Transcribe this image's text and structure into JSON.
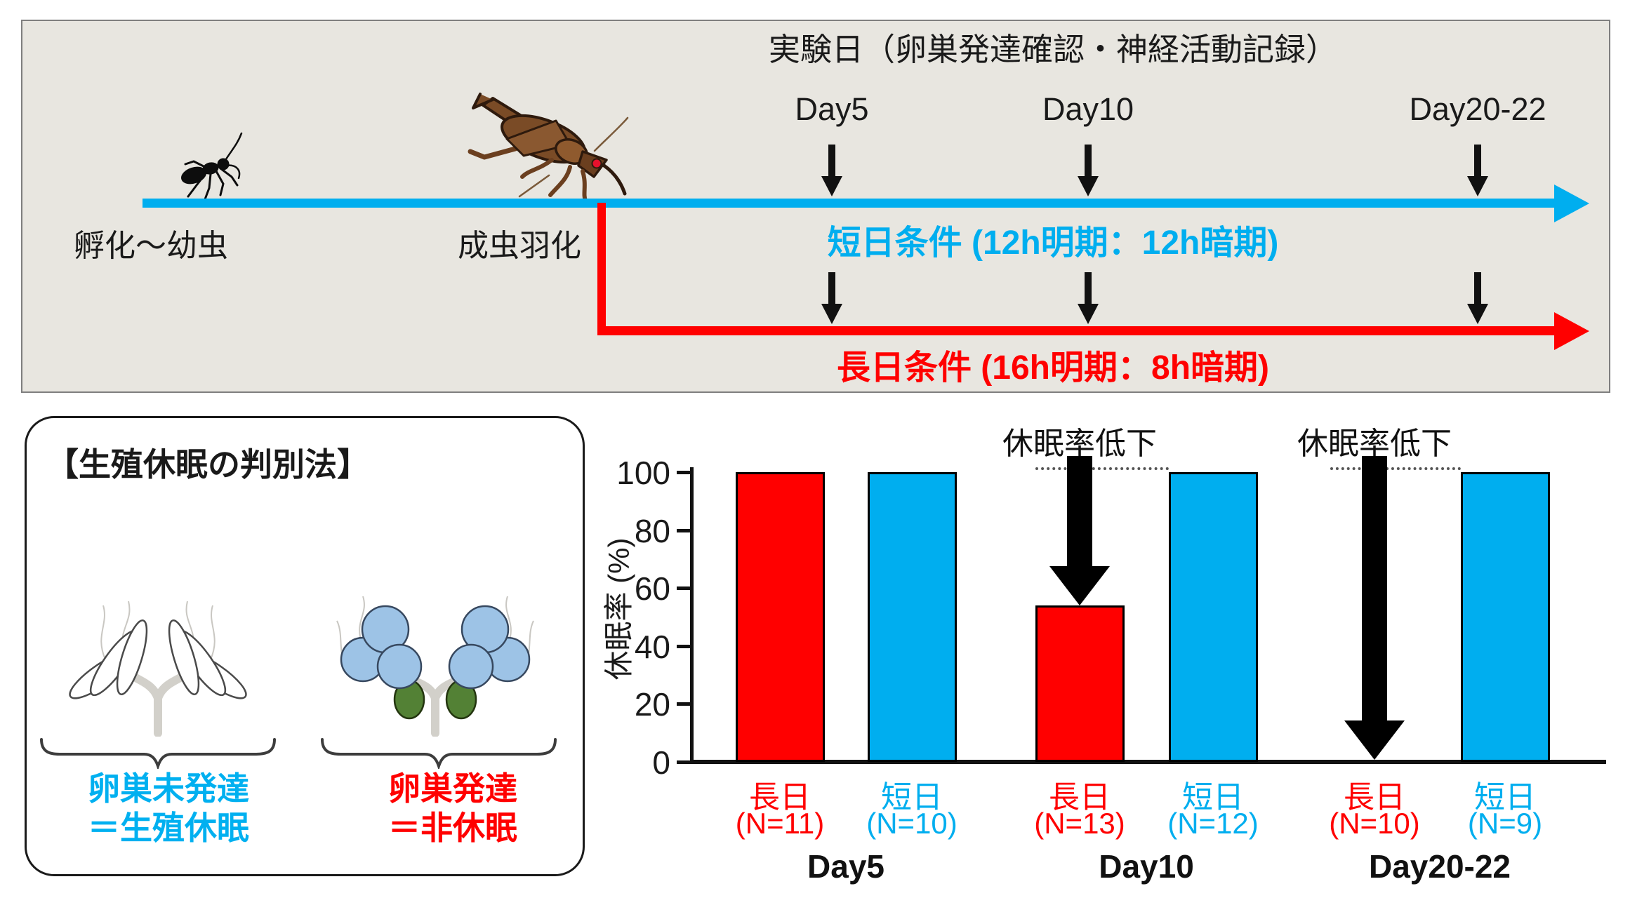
{
  "timeline_panel": {
    "background": "#e8e6e0",
    "title": "実験日（卵巣発達確認・神経活動記録）",
    "days": [
      "Day5",
      "Day10",
      "Day20-22"
    ],
    "hatch_label": "孵化～幼虫",
    "emergence_label": "成虫羽化",
    "short_day_label": "短日条件 (12h明期：12h暗期)",
    "long_day_label": "長日条件 (16h明期：8h暗期)",
    "short_day_color": "#00aeef",
    "long_day_color": "#ff0000"
  },
  "method_box": {
    "title": "【生殖休眠の判別法】",
    "undeveloped_line1": "卵巣未発達",
    "undeveloped_line2": "＝生殖休眠",
    "undeveloped_color": "#00b0f0",
    "developed_line1": "卵巣発達",
    "developed_line2": "＝非休眠",
    "developed_color": "#ff0000",
    "ovary_blue": "#9dc3e6",
    "ovary_green": "#538135"
  },
  "chart_data": {
    "type": "bar",
    "title": "",
    "ylabel": "休眠率 (%)",
    "xlabel": "",
    "ylim": [
      0,
      100
    ],
    "yticks": [
      0,
      20,
      40,
      60,
      80,
      100
    ],
    "grid": false,
    "legend": "none",
    "bar_colors": {
      "long_day": "#ff0000",
      "short_day": "#00aeef"
    },
    "groups": [
      {
        "day": "Day5",
        "annotation": null,
        "bars": [
          {
            "condition": "長日",
            "n": "(N=11)",
            "value": 100,
            "series": "long_day"
          },
          {
            "condition": "短日",
            "n": "(N=10)",
            "value": 100,
            "series": "short_day"
          }
        ]
      },
      {
        "day": "Day10",
        "annotation": "休眠率低下",
        "bars": [
          {
            "condition": "長日",
            "n": "(N=13)",
            "value": 54,
            "series": "long_day"
          },
          {
            "condition": "短日",
            "n": "(N=12)",
            "value": 100,
            "series": "short_day"
          }
        ]
      },
      {
        "day": "Day20-22",
        "annotation": "休眠率低下",
        "bars": [
          {
            "condition": "長日",
            "n": "(N=10)",
            "value": 0,
            "series": "long_day"
          },
          {
            "condition": "短日",
            "n": "(N=9)",
            "value": 100,
            "series": "short_day"
          }
        ]
      }
    ]
  }
}
